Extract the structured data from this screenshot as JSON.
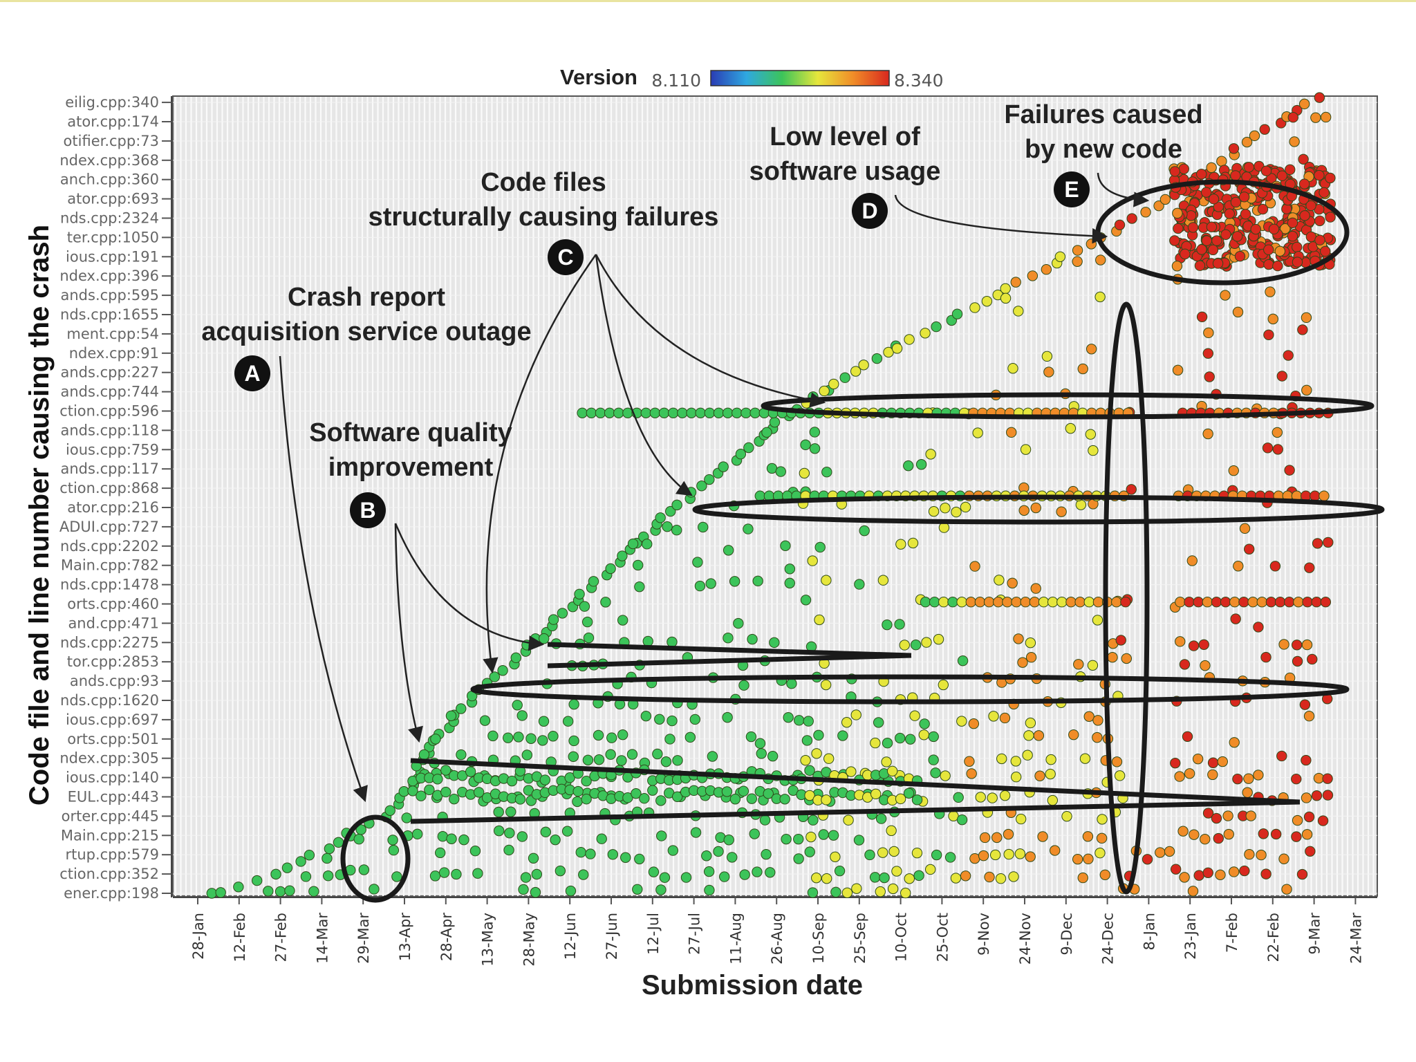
{
  "chart_data": {
    "type": "scatter",
    "title": "",
    "xlabel": "Submission date",
    "ylabel": "Code file and line number causing the crash",
    "legend": {
      "title": "Version",
      "min_label": "8.110",
      "max_label": "8.340",
      "colors": [
        "#2a3cb4",
        "#2fa8e0",
        "#3cc45a",
        "#e6e63c",
        "#f08c28",
        "#d8281e"
      ]
    },
    "x_ticks": [
      "28-Jan",
      "12-Feb",
      "27-Feb",
      "14-Mar",
      "29-Mar",
      "13-Apr",
      "28-Apr",
      "13-May",
      "28-May",
      "12-Jun",
      "27-Jun",
      "12-Jul",
      "27-Jul",
      "11-Aug",
      "26-Aug",
      "10-Sep",
      "25-Sep",
      "10-Oct",
      "25-Oct",
      "9-Nov",
      "24-Nov",
      "9-Dec",
      "24-Dec",
      "8-Jan",
      "23-Jan",
      "7-Feb",
      "22-Feb",
      "9-Mar",
      "24-Mar"
    ],
    "y_ticks": [
      "eilig.cpp:340",
      "ator.cpp:174",
      "otifier.cpp:73",
      "ndex.cpp:368",
      "anch.cpp:360",
      "ator.cpp:693",
      "nds.cpp:2324",
      "ter.cpp:1050",
      "ious.cpp:191",
      "ndex.cpp:396",
      "ands.cpp:595",
      "nds.cpp:1655",
      "ment.cpp:54",
      "ndex.cpp:91",
      "ands.cpp:227",
      "ands.cpp:744",
      "ction.cpp:596",
      "ands.cpp:118",
      "ious.cpp:759",
      "ands.cpp:117",
      "ction.cpp:868",
      "ator.cpp:216",
      "ADUI.cpp:727",
      "nds.cpp:2202",
      "Main.cpp:782",
      "nds.cpp:1478",
      "orts.cpp:460",
      "and.cpp:471",
      "nds.cpp:2275",
      "tor.cpp:2853",
      "ands.cpp:93",
      "nds.cpp:1620",
      "ious.cpp:697",
      "orts.cpp:501",
      "ndex.cpp:305",
      "ious.cpp:140",
      "EUL.cpp:443",
      "orter.cpp:445",
      "Main.cpp:215",
      "rtup.cpp:579",
      "ction.cpp:352",
      "ener.cpp:198"
    ],
    "x_range": [
      0,
      28.8
    ],
    "y_range": [
      0,
      41.5
    ],
    "frontier": [
      [
        0.3,
        0
      ],
      [
        1,
        0.3
      ],
      [
        2,
        1.2
      ],
      [
        3,
        2.2
      ],
      [
        3.8,
        3.2
      ],
      [
        4.7,
        4.2
      ],
      [
        5.1,
        5.4
      ],
      [
        5.6,
        7.5
      ],
      [
        6.2,
        9.2
      ],
      [
        7,
        10.8
      ],
      [
        7.9,
        12.6
      ],
      [
        8.8,
        14.5
      ],
      [
        9.9,
        16.6
      ],
      [
        11.1,
        19.1
      ],
      [
        12.4,
        21.4
      ],
      [
        13.8,
        24
      ],
      [
        15.3,
        26.3
      ],
      [
        16.9,
        28.4
      ],
      [
        18.5,
        30.1
      ],
      [
        20.1,
        32
      ],
      [
        21.6,
        33.7
      ],
      [
        23.1,
        35.5
      ],
      [
        24.3,
        37.2
      ],
      [
        25.3,
        38.8
      ],
      [
        26.2,
        40
      ],
      [
        27.2,
        41.5
      ]
    ],
    "annotations": [
      {
        "id": "A",
        "lines": [
          "Crash report",
          "acquisition service outage"
        ]
      },
      {
        "id": "B",
        "lines": [
          "Software quality",
          "improvement"
        ]
      },
      {
        "id": "C",
        "lines": [
          "Code files",
          "structurally causing failures"
        ]
      },
      {
        "id": "D",
        "lines": [
          "Low level of",
          "software usage"
        ]
      },
      {
        "id": "E",
        "lines": [
          "Failures caused",
          "by new code"
        ]
      }
    ]
  }
}
